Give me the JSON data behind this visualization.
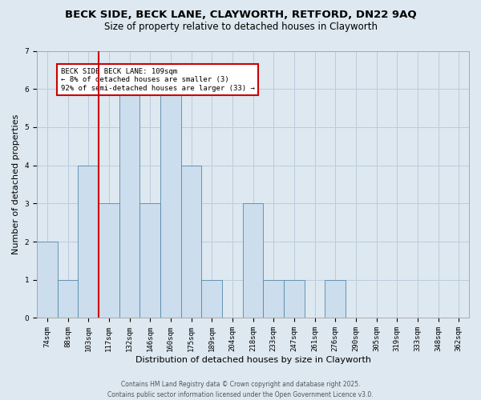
{
  "title_line1": "BECK SIDE, BECK LANE, CLAYWORTH, RETFORD, DN22 9AQ",
  "title_line2": "Size of property relative to detached houses in Clayworth",
  "xlabel": "Distribution of detached houses by size in Clayworth",
  "ylabel": "Number of detached properties",
  "bar_labels": [
    "74sqm",
    "88sqm",
    "103sqm",
    "117sqm",
    "132sqm",
    "146sqm",
    "160sqm",
    "175sqm",
    "189sqm",
    "204sqm",
    "218sqm",
    "233sqm",
    "247sqm",
    "261sqm",
    "276sqm",
    "290sqm",
    "305sqm",
    "319sqm",
    "333sqm",
    "348sqm",
    "362sqm"
  ],
  "bar_values": [
    2,
    1,
    4,
    3,
    6,
    3,
    6,
    4,
    1,
    0,
    3,
    1,
    1,
    0,
    1,
    0,
    0,
    0,
    0,
    0,
    0
  ],
  "bar_color": "#ccdded",
  "bar_edgecolor": "#5588aa",
  "bar_width": 1.0,
  "ylim": [
    0,
    7
  ],
  "yticks": [
    0,
    1,
    2,
    3,
    4,
    5,
    6,
    7
  ],
  "grid_color": "#bbccdd",
  "bg_color": "#dde8f0",
  "fig_color": "#dde8f0",
  "vline_x": 2.5,
  "vline_color": "#cc0000",
  "annotation_text": "BECK SIDE BECK LANE: 109sqm\n← 8% of detached houses are smaller (3)\n92% of semi-detached houses are larger (33) →",
  "annotation_box_color": "#ffffff",
  "annotation_box_edgecolor": "#cc0000",
  "footer_line1": "Contains HM Land Registry data © Crown copyright and database right 2025.",
  "footer_line2": "Contains public sector information licensed under the Open Government Licence v3.0.",
  "title_fontsize": 9.5,
  "title2_fontsize": 8.5,
  "axis_label_fontsize": 8,
  "tick_fontsize": 6.5,
  "annotation_fontsize": 6.5,
  "footer_fontsize": 5.5
}
